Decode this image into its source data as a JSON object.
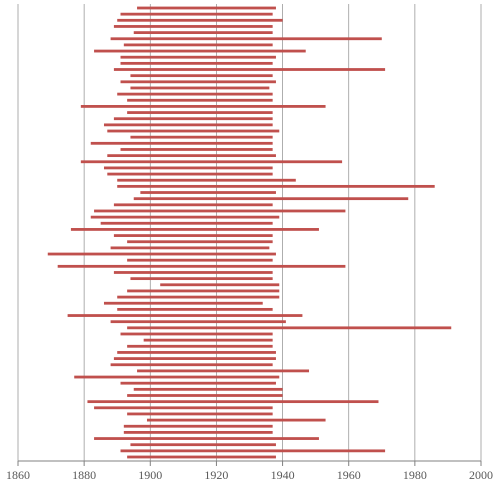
{
  "chart_data": {
    "type": "bar",
    "orientation": "horizontal-range",
    "title": "",
    "xlabel": "",
    "ylabel": "",
    "xlim": [
      1860,
      2000
    ],
    "xticks": [
      1860,
      1880,
      1900,
      1920,
      1940,
      1960,
      1980,
      2000
    ],
    "grid": "vertical",
    "legend": "none",
    "color": "#c0504d",
    "gridline_color": "#9a9a9a",
    "ranges": [
      [
        1896,
        1938
      ],
      [
        1891,
        1937
      ],
      [
        1890,
        1940
      ],
      [
        1889,
        1937
      ],
      [
        1895,
        1937
      ],
      [
        1888,
        1970
      ],
      [
        1892,
        1937
      ],
      [
        1883,
        1947
      ],
      [
        1891,
        1938
      ],
      [
        1891,
        1937
      ],
      [
        1889,
        1971
      ],
      [
        1894,
        1937
      ],
      [
        1891,
        1938
      ],
      [
        1894,
        1936
      ],
      [
        1890,
        1937
      ],
      [
        1893,
        1937
      ],
      [
        1879,
        1953
      ],
      [
        1893,
        1937
      ],
      [
        1889,
        1937
      ],
      [
        1886,
        1937
      ],
      [
        1887,
        1939
      ],
      [
        1894,
        1937
      ],
      [
        1882,
        1937
      ],
      [
        1891,
        1937
      ],
      [
        1887,
        1938
      ],
      [
        1879,
        1958
      ],
      [
        1886,
        1937
      ],
      [
        1887,
        1937
      ],
      [
        1890,
        1944
      ],
      [
        1890,
        1986
      ],
      [
        1897,
        1938
      ],
      [
        1895,
        1978
      ],
      [
        1889,
        1937
      ],
      [
        1883,
        1959
      ],
      [
        1882,
        1939
      ],
      [
        1885,
        1937
      ],
      [
        1876,
        1951
      ],
      [
        1889,
        1937
      ],
      [
        1893,
        1937
      ],
      [
        1888,
        1936
      ],
      [
        1869,
        1938
      ],
      [
        1893,
        1937
      ],
      [
        1872,
        1959
      ],
      [
        1889,
        1937
      ],
      [
        1894,
        1937
      ],
      [
        1903,
        1939
      ],
      [
        1893,
        1939
      ],
      [
        1890,
        1939
      ],
      [
        1886,
        1934
      ],
      [
        1890,
        1937
      ],
      [
        1875,
        1946
      ],
      [
        1888,
        1941
      ],
      [
        1893,
        1991
      ],
      [
        1891,
        1937
      ],
      [
        1898,
        1937
      ],
      [
        1893,
        1937
      ],
      [
        1890,
        1938
      ],
      [
        1889,
        1938
      ],
      [
        1888,
        1937
      ],
      [
        1896,
        1948
      ],
      [
        1877,
        1939
      ],
      [
        1891,
        1938
      ],
      [
        1895,
        1940
      ],
      [
        1893,
        1940
      ],
      [
        1881,
        1969
      ],
      [
        1883,
        1937
      ],
      [
        1893,
        1937
      ],
      [
        1899,
        1953
      ],
      [
        1892,
        1937
      ],
      [
        1892,
        1937
      ],
      [
        1883,
        1951
      ],
      [
        1894,
        1938
      ],
      [
        1891,
        1971
      ],
      [
        1893,
        1938
      ]
    ]
  }
}
